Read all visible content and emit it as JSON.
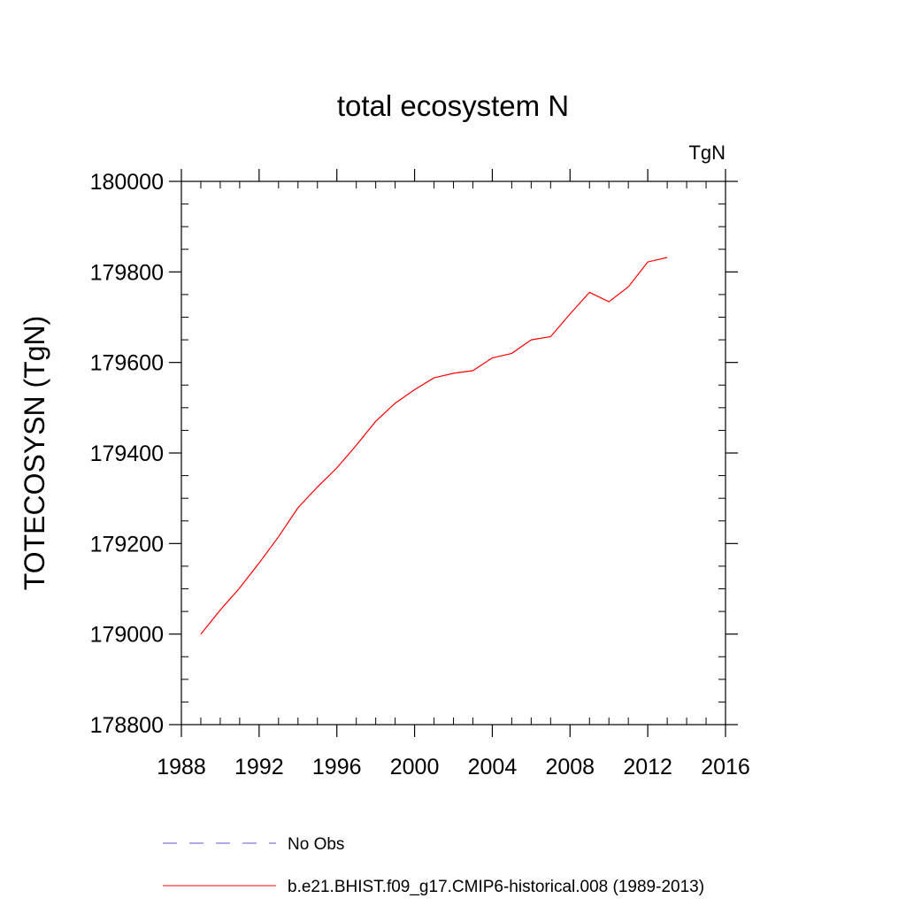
{
  "chart_data": {
    "type": "line",
    "title": "total ecosystem N",
    "units": "TgN",
    "xlabel": "",
    "ylabel": "TOTECOSYSN  (TgN)",
    "xlim": [
      1988,
      2016
    ],
    "ylim": [
      178800,
      180000
    ],
    "xticks": [
      1988,
      1992,
      1996,
      2000,
      2004,
      2008,
      2012,
      2016
    ],
    "yticks": [
      178800,
      179000,
      179200,
      179400,
      179600,
      179800,
      180000
    ],
    "x_minor_step": 1,
    "y_minor_step": 50,
    "grid": false,
    "legend_position": "bottom",
    "series": [
      {
        "name": "b.e21.BHIST.f09_g17.CMIP6-historical.008 (1989-2013)",
        "color": "#ff0000",
        "dash": "solid",
        "x": [
          1989,
          1990,
          1991,
          1992,
          1993,
          1994,
          1995,
          1996,
          1997,
          1998,
          1999,
          2000,
          2001,
          2002,
          2003,
          2004,
          2005,
          2006,
          2007,
          2008,
          2009,
          2010,
          2011,
          2012,
          2013
        ],
        "y": [
          179000,
          179053,
          179102,
          179157,
          179215,
          179279,
          179325,
          179367,
          179417,
          179470,
          179510,
          179540,
          179566,
          179576,
          179582,
          179610,
          179620,
          179650,
          179657,
          179707,
          179755,
          179734,
          179767,
          179822,
          179832
        ]
      }
    ],
    "legend": [
      {
        "label": "No Obs",
        "color": "#6a5acd",
        "dash": "dashed"
      },
      {
        "label": "b.e21.BHIST.f09_g17.CMIP6-historical.008 (1989-2013)",
        "color": "#ff0000",
        "dash": "solid"
      }
    ]
  }
}
